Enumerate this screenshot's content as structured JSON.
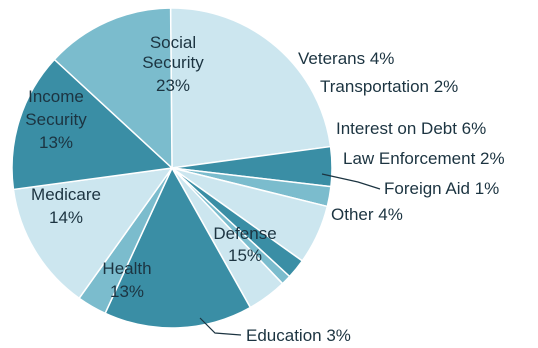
{
  "chart_data": {
    "type": "pie",
    "title": "",
    "slices": [
      {
        "label": "Social Security",
        "label_lines": [
          "Social",
          "Security",
          "23%"
        ],
        "value": 23,
        "color": "#cce6ef"
      },
      {
        "label": "Veterans",
        "label_lines": [
          "Veterans 4%"
        ],
        "value": 4,
        "color": "#3a8ea5"
      },
      {
        "label": "Transportation",
        "label_lines": [
          "Transportation 2%"
        ],
        "value": 2,
        "color": "#7bbccd"
      },
      {
        "label": "Interest on Debt",
        "label_lines": [
          "Interest on Debt 6%"
        ],
        "value": 6,
        "color": "#cce6ef"
      },
      {
        "label": "Law Enforcement",
        "label_lines": [
          "Law Enforcement 2%"
        ],
        "value": 2,
        "color": "#3a8ea5"
      },
      {
        "label": "Foreign Aid",
        "label_lines": [
          "Foreign Aid 1%"
        ],
        "value": 1,
        "color": "#7bbccd"
      },
      {
        "label": "Other",
        "label_lines": [
          "Other 4%"
        ],
        "value": 4,
        "color": "#cce6ef"
      },
      {
        "label": "Defense",
        "label_lines": [
          "Defense",
          "15%"
        ],
        "value": 15,
        "color": "#3a8ea5"
      },
      {
        "label": "Education",
        "label_lines": [
          "Education 3%"
        ],
        "value": 3,
        "color": "#7bbccd"
      },
      {
        "label": "Health",
        "label_lines": [
          "Health",
          "13%"
        ],
        "value": 13,
        "color": "#cce6ef"
      },
      {
        "label": "Medicare",
        "label_lines": [
          "Medicare",
          "14%"
        ],
        "value": 14,
        "color": "#3a8ea5"
      },
      {
        "label": "Income Security",
        "label_lines": [
          "Income",
          "Security",
          "13%"
        ],
        "value": 13,
        "color": "#7bbccd"
      }
    ]
  }
}
